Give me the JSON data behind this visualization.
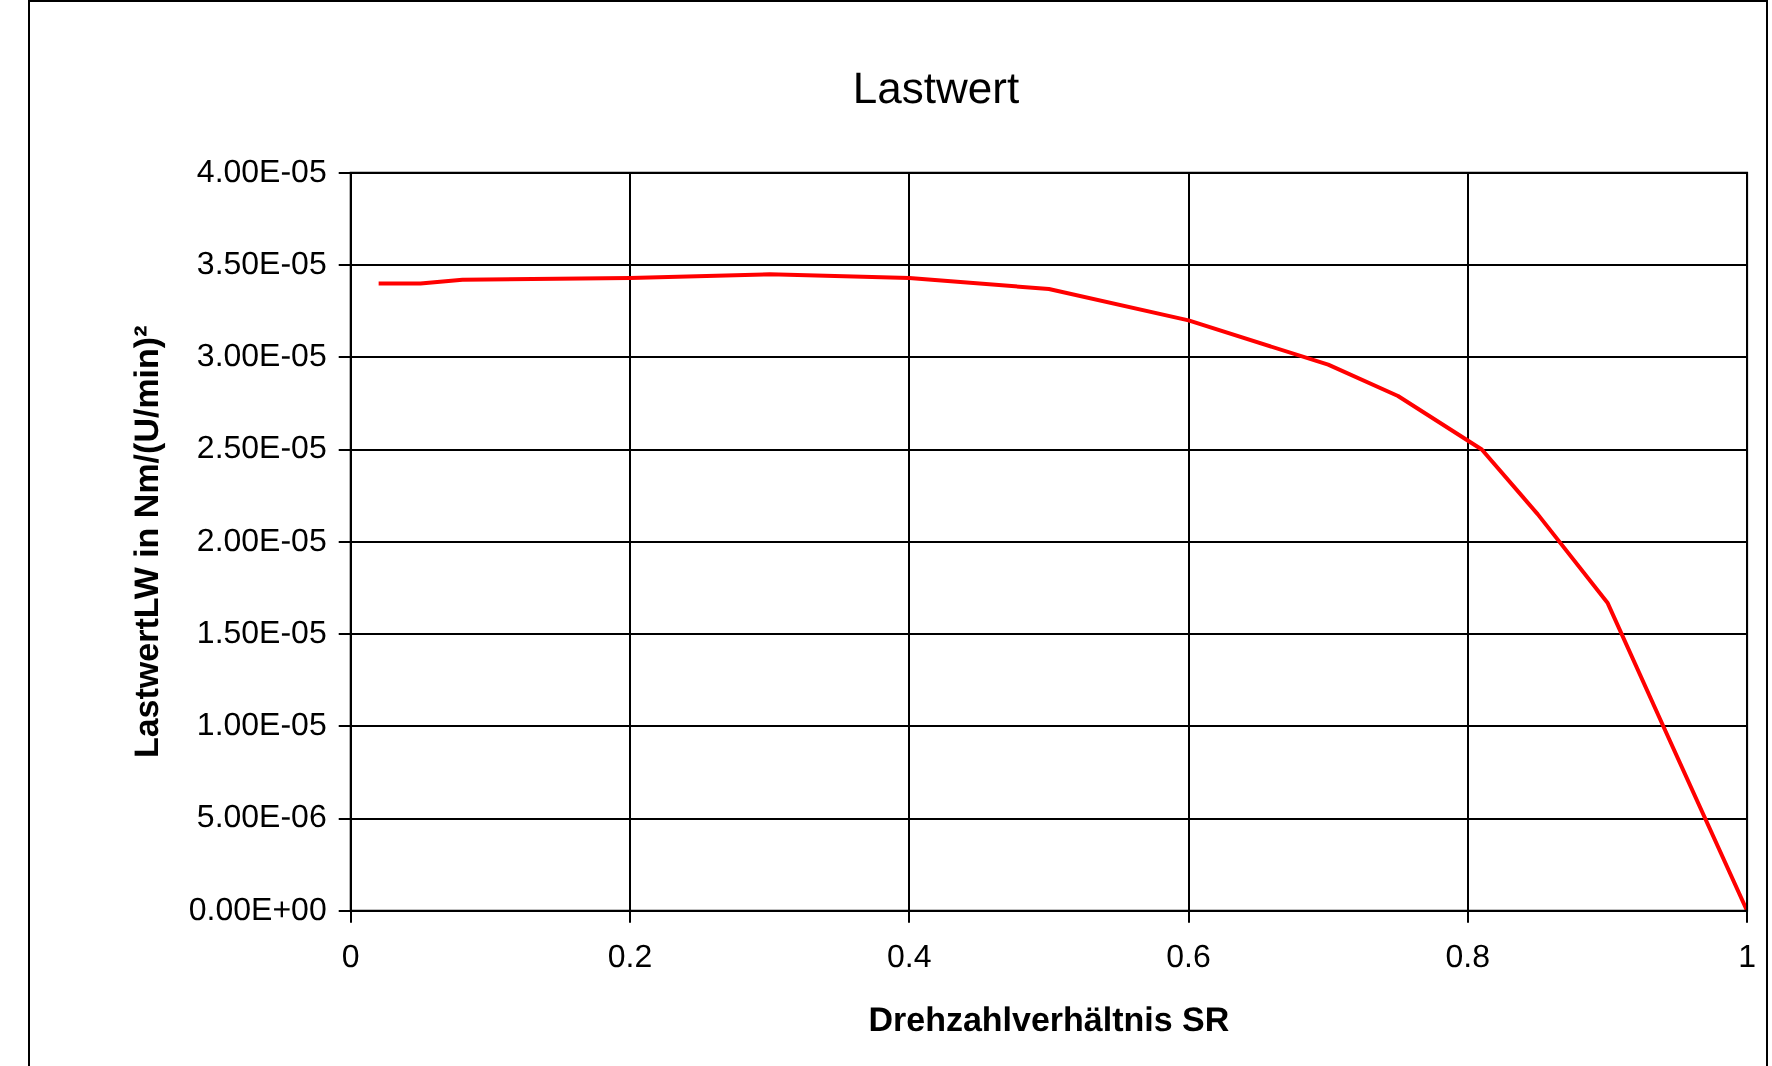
{
  "chart_data": {
    "type": "line",
    "title": "Lastwert",
    "xlabel": "Drehzahlverhältnis SR",
    "ylabel": "LastwertLW in Nm/(U/min)²",
    "x": [
      0.02,
      0.05,
      0.08,
      0.2,
      0.3,
      0.4,
      0.5,
      0.6,
      0.7,
      0.75,
      0.81,
      0.85,
      0.9,
      0.94,
      1.0
    ],
    "series": [
      {
        "color": "#ff0000",
        "values": [
          3.4e-05,
          3.4e-05,
          3.42e-05,
          3.43e-05,
          3.45e-05,
          3.43e-05,
          3.37e-05,
          3.2e-05,
          2.96e-05,
          2.79e-05,
          2.5e-05,
          2.15e-05,
          1.67e-05,
          1e-05,
          0
        ]
      }
    ],
    "xlim": [
      0,
      1
    ],
    "xticks": [
      0,
      0.2,
      0.4,
      0.6,
      0.8,
      1
    ],
    "ylim": [
      0,
      4e-05
    ],
    "yticks": [
      {
        "value": 0,
        "label": "0.00E+00"
      },
      {
        "value": 5e-06,
        "label": "5.00E-06"
      },
      {
        "value": 1e-05,
        "label": "1.00E-05"
      },
      {
        "value": 1.5e-05,
        "label": "1.50E-05"
      },
      {
        "value": 2e-05,
        "label": "2.00E-05"
      },
      {
        "value": 2.5e-05,
        "label": "2.50E-05"
      },
      {
        "value": 3e-05,
        "label": "3.00E-05"
      },
      {
        "value": 3.5e-05,
        "label": "3.50E-05"
      },
      {
        "value": 4e-05,
        "label": "4.00E-05"
      }
    ],
    "grid": true,
    "legend": false,
    "marker": "none",
    "line_style": "solid"
  }
}
